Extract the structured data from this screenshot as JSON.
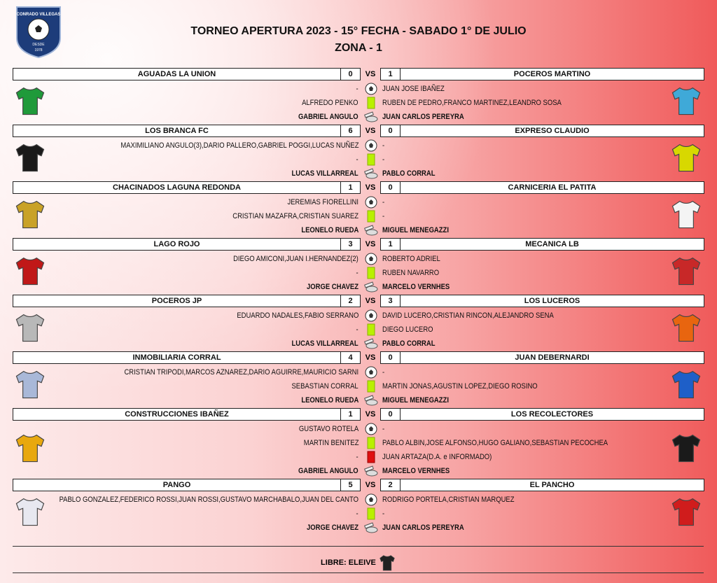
{
  "logo": {
    "name": "CONRADO VILLEGAS",
    "since": "DESDE",
    "year": "1978"
  },
  "header": {
    "title": "TORNEO APERTURA 2023 - 15° FECHA - SABADO 1° DE JULIO",
    "subtitle": "ZONA - 1"
  },
  "vs": "VS",
  "matches": [
    {
      "home": "AGUADAS LA UNION",
      "home_score": 0,
      "away": "POCEROS MARTINO",
      "away_score": 1,
      "home_kit": "#1f9a3a",
      "away_kit": "#3fa9d8",
      "goals": {
        "home": "-",
        "away": "JUAN JOSE IBAÑEZ"
      },
      "yellow_cards": {
        "home": "ALFREDO PENKO",
        "away": "RUBEN DE PEDRO,FRANCO MARTINEZ,LEANDRO SOSA"
      },
      "referees": {
        "home": "GABRIEL ANGULO",
        "away": "JUAN CARLOS PEREYRA"
      }
    },
    {
      "home": "LOS BRANCA FC",
      "home_score": 6,
      "away": "EXPRESO CLAUDIO",
      "away_score": 0,
      "home_kit": "#1a1a1a",
      "away_kit": "#d8d800",
      "goals": {
        "home": "MAXIMILIANO ANGULO(3),DARIO PALLERO,GABRIEL POGGI,LUCAS NUÑEZ",
        "away": "-"
      },
      "yellow_cards": {
        "home": "-",
        "away": "-"
      },
      "referees": {
        "home": "LUCAS VILLARREAL",
        "away": "PABLO CORRAL"
      }
    },
    {
      "home": "CHACINADOS LAGUNA REDONDA",
      "home_score": 1,
      "away": "CARNICERIA EL PATITA",
      "away_score": 0,
      "home_kit": "#c9a227",
      "away_kit": "#f4f4f4",
      "goals": {
        "home": "JEREMIAS FIORELLINI",
        "away": "-"
      },
      "yellow_cards": {
        "home": "CRISTIAN MAZAFRA,CRISTIAN SUAREZ",
        "away": "-"
      },
      "referees": {
        "home": "LEONELO RUEDA",
        "away": "MIGUEL MENEGAZZI"
      }
    },
    {
      "home": "LAGO ROJO",
      "home_score": 3,
      "away": "MECANICA LB",
      "away_score": 1,
      "home_kit": "#c01818",
      "away_kit": "#c82828",
      "goals": {
        "home": "DIEGO AMICONI,JUAN I.HERNANDEZ(2)",
        "away": "ROBERTO ADRIEL"
      },
      "yellow_cards": {
        "home": "-",
        "away": "RUBEN NAVARRO"
      },
      "referees": {
        "home": "JORGE CHAVEZ",
        "away": "MARCELO VERNHES"
      }
    },
    {
      "home": "POCEROS JP",
      "home_score": 2,
      "away": "LOS LUCEROS",
      "away_score": 3,
      "home_kit": "#b8b8b8",
      "away_kit": "#e8650f",
      "goals": {
        "home": "EDUARDO NADALES,FABIO SERRANO",
        "away": "DAVID LUCERO,CRISTIAN RINCON,ALEJANDRO SENA"
      },
      "yellow_cards": {
        "home": "-",
        "away": "DIEGO LUCERO"
      },
      "referees": {
        "home": "LUCAS VILLARREAL",
        "away": "PABLO CORRAL"
      }
    },
    {
      "home": "INMOBILIARIA CORRAL",
      "home_score": 4,
      "away": "JUAN DEBERNARDI",
      "away_score": 0,
      "home_kit": "#a9b8d8",
      "away_kit": "#1e5fc8",
      "goals": {
        "home": "CRISTIAN TRIPODI,MARCOS AZNAREZ,DARIO AGUIRRE,MAURICIO SARNI",
        "away": "-"
      },
      "yellow_cards": {
        "home": "SEBASTIAN CORRAL",
        "away": "MARTIN JONAS,AGUSTIN LOPEZ,DIEGO ROSINO"
      },
      "referees": {
        "home": "LEONELO RUEDA",
        "away": "MIGUEL MENEGAZZI"
      }
    },
    {
      "home": "CONSTRUCCIONES IBAÑEZ",
      "home_score": 1,
      "away": "LOS RECOLECTORES",
      "away_score": 0,
      "home_kit": "#e8a80f",
      "away_kit": "#1a1a1a",
      "goals": {
        "home": "GUSTAVO ROTELA",
        "away": "-"
      },
      "yellow_cards": {
        "home": "MARTIN BENITEZ",
        "away": "PABLO ALBIN,JOSE ALFONSO,HUGO GALIANO,SEBASTIAN PECOCHEA"
      },
      "red_cards": {
        "home": "-",
        "away": "JUAN ARTAZA(D.A. e INFORMADO)"
      },
      "referees": {
        "home": "GABRIEL ANGULO",
        "away": "MARCELO VERNHES"
      }
    },
    {
      "home": "PANGO",
      "home_score": 5,
      "away": "EL PANCHO",
      "away_score": 2,
      "home_kit": "#e8e8f0",
      "away_kit": "#d01c1c",
      "goals": {
        "home": "PABLO GONZALEZ,FEDERICO ROSSI,JUAN ROSSI,GUSTAVO MARCHABALO,JUAN DEL CANTO",
        "away": "RODRIGO PORTELA,CRISTIAN MARQUEZ"
      },
      "yellow_cards": {
        "home": "-",
        "away": "-"
      },
      "referees": {
        "home": "JORGE CHAVEZ",
        "away": "JUAN CARLOS PEREYRA"
      }
    }
  ],
  "footer": {
    "free": "LIBRE: ELEIVE"
  }
}
